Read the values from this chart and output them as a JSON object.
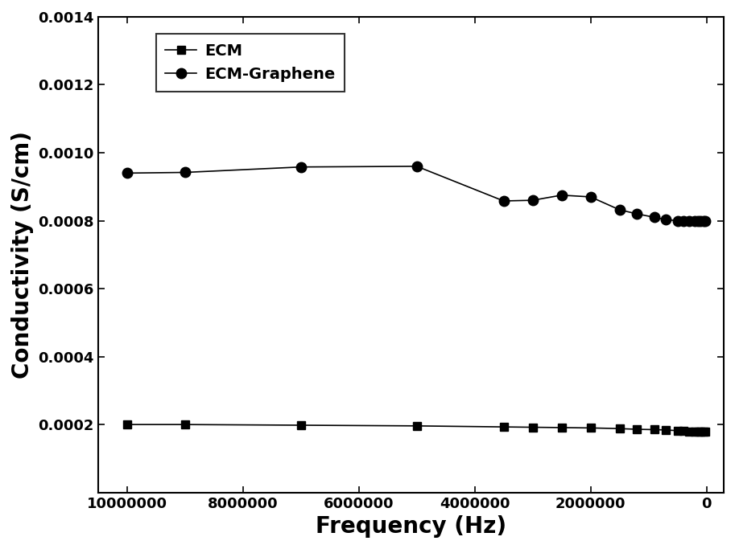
{
  "ecm_x": [
    10000000,
    9000000,
    7000000,
    5000000,
    3500000,
    3000000,
    2500000,
    2000000,
    1500000,
    1200000,
    900000,
    700000,
    500000,
    400000,
    300000,
    200000,
    150000,
    100000,
    50000,
    20000
  ],
  "ecm_y": [
    0.0002,
    0.0002,
    0.000198,
    0.000196,
    0.000193,
    0.000192,
    0.000191,
    0.00019,
    0.000188,
    0.000186,
    0.000185,
    0.000184,
    0.000182,
    0.000181,
    0.00018,
    0.000179,
    0.000179,
    0.000178,
    0.000178,
    0.000178
  ],
  "ecm_graphene_x": [
    10000000,
    9000000,
    7000000,
    5000000,
    3500000,
    3000000,
    2500000,
    2000000,
    1500000,
    1200000,
    900000,
    700000,
    500000,
    400000,
    300000,
    200000,
    150000,
    100000,
    50000,
    20000
  ],
  "ecm_graphene_y": [
    0.00094,
    0.000942,
    0.000958,
    0.00096,
    0.000858,
    0.00086,
    0.000875,
    0.00087,
    0.000832,
    0.00082,
    0.00081,
    0.000803,
    0.0008,
    0.0008,
    0.0008,
    0.0008,
    0.0008,
    0.0008,
    0.0008,
    0.0008
  ],
  "line_color": "#000000",
  "xlabel": "Frequency (Hz)",
  "ylabel": "Conductivity (S/cm)",
  "xlim": [
    10500000,
    -300000
  ],
  "ylim": [
    0,
    0.0014
  ],
  "yticks": [
    0.0002,
    0.0004,
    0.0006,
    0.0008,
    0.001,
    0.0012,
    0.0014
  ],
  "xticks": [
    10000000,
    8000000,
    6000000,
    4000000,
    2000000,
    0
  ],
  "legend_labels": [
    "ECM",
    "ECM-Graphene"
  ],
  "background_color": "#ffffff",
  "label_fontsize": 20,
  "tick_fontsize": 13,
  "legend_fontsize": 14
}
